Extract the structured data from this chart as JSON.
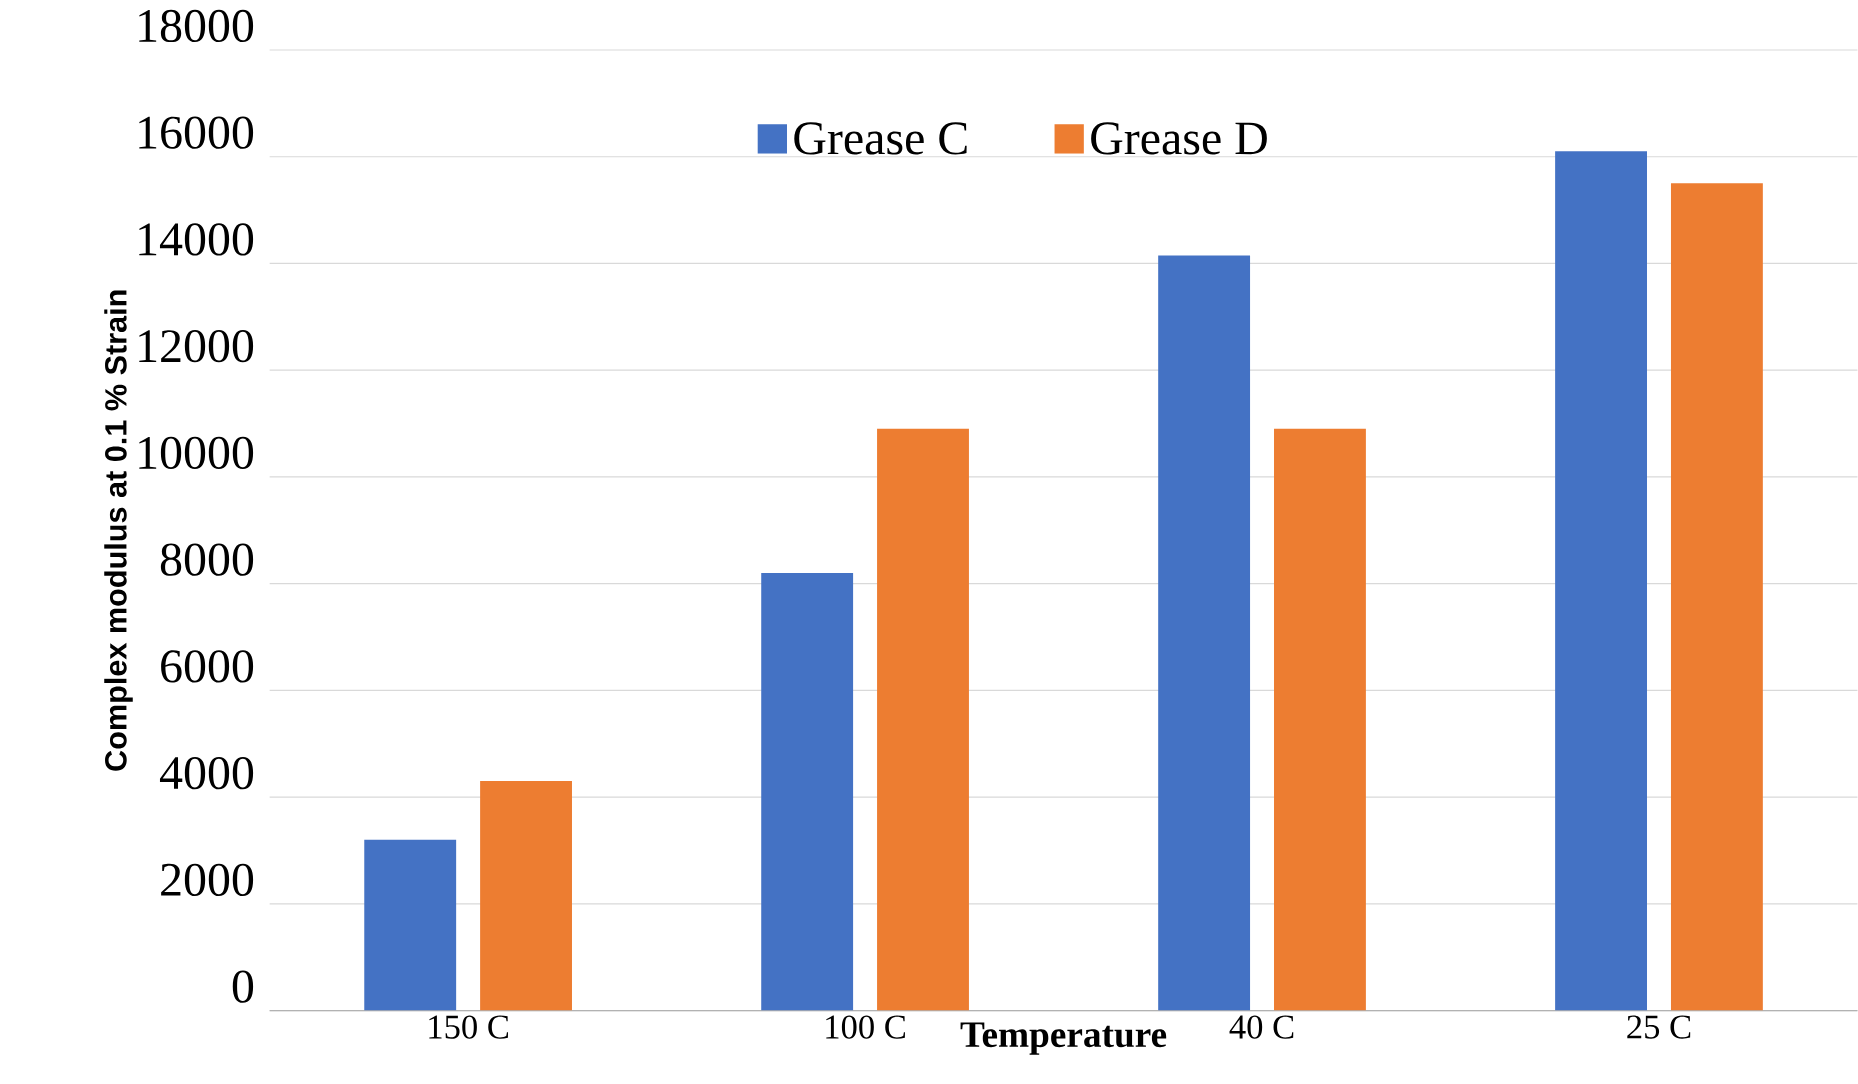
{
  "chart_data": {
    "type": "bar",
    "xlabel": "Temperature",
    "ylabel": "Complex modulus at 0.1 % Strain",
    "categories": [
      "150 C",
      "100 C",
      "40 C",
      "25 C"
    ],
    "series": [
      {
        "name": "Grease C",
        "color": "#4472c4",
        "values": [
          3200,
          8200,
          14150,
          16100
        ]
      },
      {
        "name": "Grease D",
        "color": "#ed7d31",
        "values": [
          4300,
          10900,
          10900,
          15500
        ]
      }
    ],
    "ylim": [
      0,
      18000
    ],
    "yticks": [
      0,
      2000,
      4000,
      6000,
      8000,
      10000,
      12000,
      14000,
      16000,
      18000
    ],
    "grid": "y",
    "legend": "top"
  }
}
